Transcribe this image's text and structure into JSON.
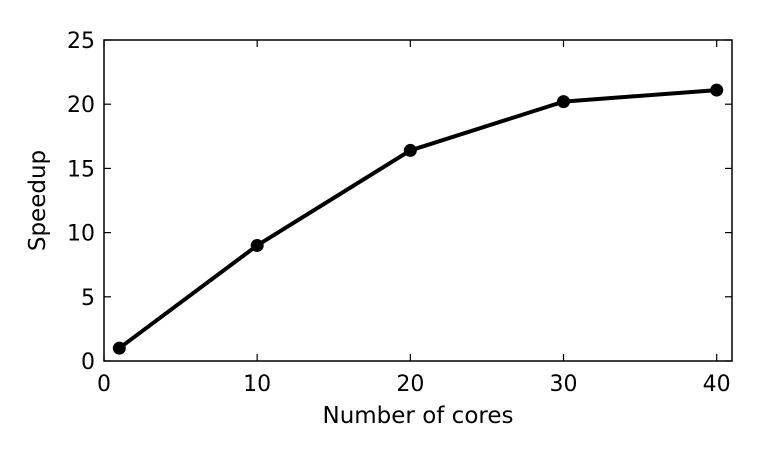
{
  "chart_data": {
    "type": "line",
    "xlabel": "Number of cores",
    "ylabel": "Speedup",
    "xlim": [
      0,
      41
    ],
    "ylim": [
      0,
      25
    ],
    "xticks": [
      0,
      10,
      20,
      30,
      40
    ],
    "yticks": [
      0,
      5,
      10,
      15,
      20,
      25
    ],
    "grid": false,
    "legend": "none",
    "series": [
      {
        "x": [
          1,
          10,
          20,
          30,
          40
        ],
        "y": [
          1.0,
          9.0,
          16.4,
          20.2,
          21.1
        ],
        "color": "#000000",
        "marker": "circle"
      }
    ]
  }
}
